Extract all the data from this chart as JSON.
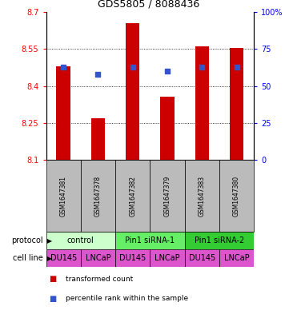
{
  "title": "GDS5805 / 8088436",
  "samples": [
    "GSM1647381",
    "GSM1647378",
    "GSM1647382",
    "GSM1647379",
    "GSM1647383",
    "GSM1647380"
  ],
  "bar_values": [
    8.48,
    8.27,
    8.655,
    8.355,
    8.56,
    8.555
  ],
  "percentile_values": [
    63,
    58,
    63,
    60,
    63,
    63
  ],
  "ymin": 8.1,
  "ymax": 8.7,
  "yticks_left": [
    8.1,
    8.25,
    8.4,
    8.55,
    8.7
  ],
  "yticks_right": [
    0,
    25,
    50,
    75,
    100
  ],
  "bar_color": "#cc0000",
  "dot_color": "#3355cc",
  "protocol_groups": [
    {
      "label": "control",
      "span": [
        0,
        1
      ],
      "color": "#ccffcc"
    },
    {
      "label": "Pin1 siRNA-1",
      "span": [
        2,
        3
      ],
      "color": "#66ee66"
    },
    {
      "label": "Pin1 siRNA-2",
      "span": [
        4,
        5
      ],
      "color": "#33cc33"
    }
  ],
  "cell_lines": [
    "DU145",
    "LNCaP",
    "DU145",
    "LNCaP",
    "DU145",
    "LNCaP"
  ],
  "cell_line_color": "#dd55cc",
  "gsm_bg_color": "#bbbbbb",
  "legend_red_label": "transformed count",
  "legend_blue_label": "percentile rank within the sample",
  "protocol_label": "protocol",
  "cell_line_label": "cell line",
  "bar_width": 0.4,
  "title_fontsize": 9,
  "tick_fontsize": 7,
  "gsm_fontsize": 5.5,
  "label_fontsize": 7,
  "proto_fontsize": 7,
  "cell_fontsize": 7
}
